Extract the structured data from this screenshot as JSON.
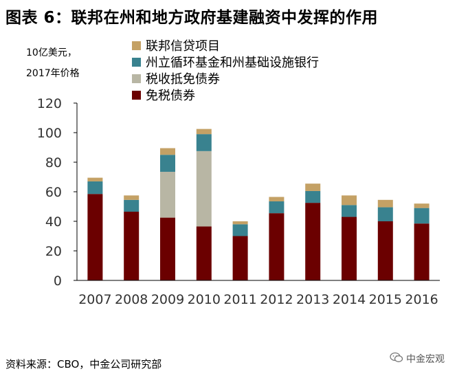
{
  "title": "图表 6：联邦在州和地方政府基建融资中发挥的作用",
  "unit_line1": "10亿美元，",
  "unit_line2": "2017年价格",
  "source": "资料来源：CBO，中金公司研究部",
  "watermark": "中金宏观",
  "chart_data": {
    "type": "bar",
    "stacked": true,
    "categories": [
      "2007",
      "2008",
      "2009",
      "2010",
      "2011",
      "2012",
      "2013",
      "2014",
      "2015",
      "2016"
    ],
    "series": [
      {
        "name": "免税债券",
        "color": "#6b0000",
        "values": [
          58.5,
          46.5,
          42.5,
          36.5,
          30,
          45.5,
          52.5,
          43,
          40,
          38.5
        ]
      },
      {
        "name": "税收抵免债券",
        "color": "#b8b6a4",
        "values": [
          0,
          0,
          31,
          51,
          0,
          0,
          0,
          0,
          0,
          0
        ]
      },
      {
        "name": "州立循环基金和州基础设施银行",
        "color": "#39828f",
        "values": [
          8.5,
          8,
          11.5,
          11.5,
          8,
          8,
          8,
          8,
          9.5,
          10.5
        ]
      },
      {
        "name": "联邦信贷项目",
        "color": "#c4a165",
        "values": [
          2.5,
          3,
          4.5,
          3.5,
          2,
          3,
          5,
          6.5,
          5,
          3
        ]
      }
    ],
    "legend_order": [
      3,
      2,
      1,
      0
    ],
    "ylim": [
      0,
      120
    ],
    "yticks": [
      0,
      20,
      40,
      60,
      80,
      100,
      120
    ],
    "grid": false,
    "legend_position": "top"
  }
}
